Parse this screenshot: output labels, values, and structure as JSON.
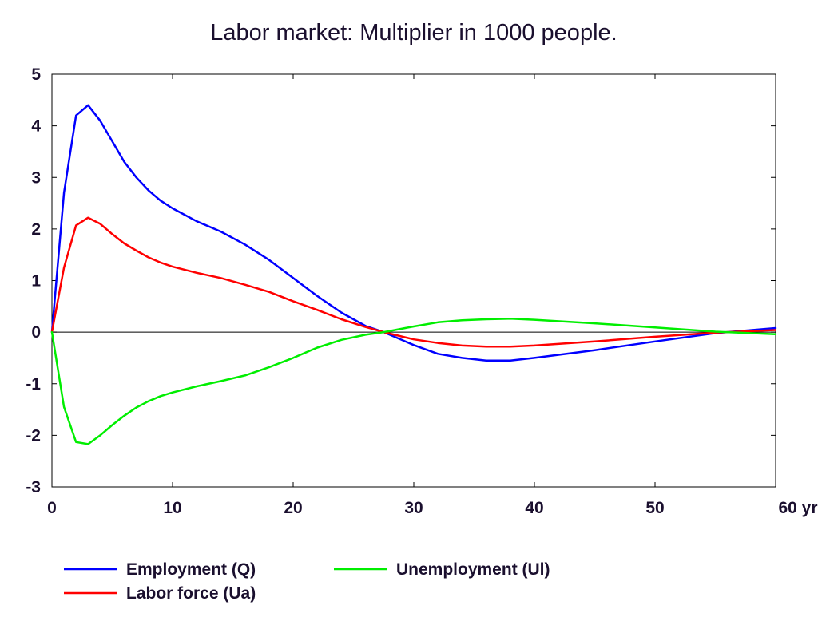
{
  "chart_data": {
    "type": "line",
    "title": "Labor market: Multiplier in 1000 people.",
    "xlabel": "",
    "ylabel": "",
    "x_unit": "yr",
    "xlim": [
      0,
      60
    ],
    "ylim": [
      -3,
      5
    ],
    "x_ticks": [
      0,
      10,
      20,
      30,
      40,
      50,
      60
    ],
    "x_tick_labels": [
      "0",
      "10",
      "20",
      "30",
      "40",
      "50",
      "60 yr"
    ],
    "y_ticks": [
      5,
      4,
      3,
      2,
      1,
      0,
      -1,
      -2,
      -3
    ],
    "y_tick_labels": [
      "5",
      "4",
      "3",
      "2",
      "1",
      "0",
      "-1",
      "-2",
      "-3"
    ],
    "grid": false,
    "zero_line": true,
    "legend_position": "bottom",
    "series": [
      {
        "name": "Employment (Q)",
        "color": "#0000ff",
        "x": [
          0,
          1,
          2,
          3,
          4,
          5,
          6,
          7,
          8,
          9,
          10,
          12,
          14,
          16,
          18,
          20,
          22,
          24,
          26,
          27.5,
          30,
          32,
          34,
          36,
          38,
          40,
          45,
          50,
          55,
          60
        ],
        "y": [
          0,
          2.7,
          4.2,
          4.4,
          4.1,
          3.7,
          3.3,
          3.0,
          2.75,
          2.55,
          2.4,
          2.15,
          1.95,
          1.7,
          1.4,
          1.05,
          0.7,
          0.38,
          0.12,
          0,
          -0.25,
          -0.42,
          -0.5,
          -0.55,
          -0.55,
          -0.5,
          -0.35,
          -0.18,
          -0.02,
          0.08
        ]
      },
      {
        "name": "Labor force (Ua)",
        "color": "#ff0000",
        "x": [
          0,
          1,
          2,
          3,
          4,
          5,
          6,
          7,
          8,
          9,
          10,
          12,
          14,
          16,
          18,
          20,
          22,
          24,
          26,
          27.5,
          30,
          32,
          34,
          36,
          38,
          40,
          45,
          50,
          55,
          60
        ],
        "y": [
          0,
          1.25,
          2.07,
          2.22,
          2.1,
          1.9,
          1.72,
          1.58,
          1.45,
          1.35,
          1.27,
          1.15,
          1.05,
          0.92,
          0.78,
          0.6,
          0.43,
          0.25,
          0.1,
          0,
          -0.14,
          -0.21,
          -0.26,
          -0.28,
          -0.28,
          -0.26,
          -0.18,
          -0.09,
          -0.01,
          0.04
        ]
      },
      {
        "name": "Unemployment (Ul)",
        "color": "#00ee00",
        "x": [
          0,
          1,
          2,
          3,
          4,
          5,
          6,
          7,
          8,
          9,
          10,
          12,
          14,
          16,
          18,
          20,
          22,
          24,
          26,
          27.5,
          30,
          32,
          34,
          36,
          38,
          40,
          45,
          50,
          55,
          60
        ],
        "y": [
          0,
          -1.45,
          -2.13,
          -2.17,
          -2.0,
          -1.8,
          -1.62,
          -1.46,
          -1.34,
          -1.24,
          -1.17,
          -1.05,
          -0.95,
          -0.84,
          -0.68,
          -0.5,
          -0.3,
          -0.15,
          -0.05,
          0,
          0.11,
          0.19,
          0.23,
          0.25,
          0.26,
          0.24,
          0.17,
          0.09,
          0.01,
          -0.04
        ]
      }
    ]
  }
}
